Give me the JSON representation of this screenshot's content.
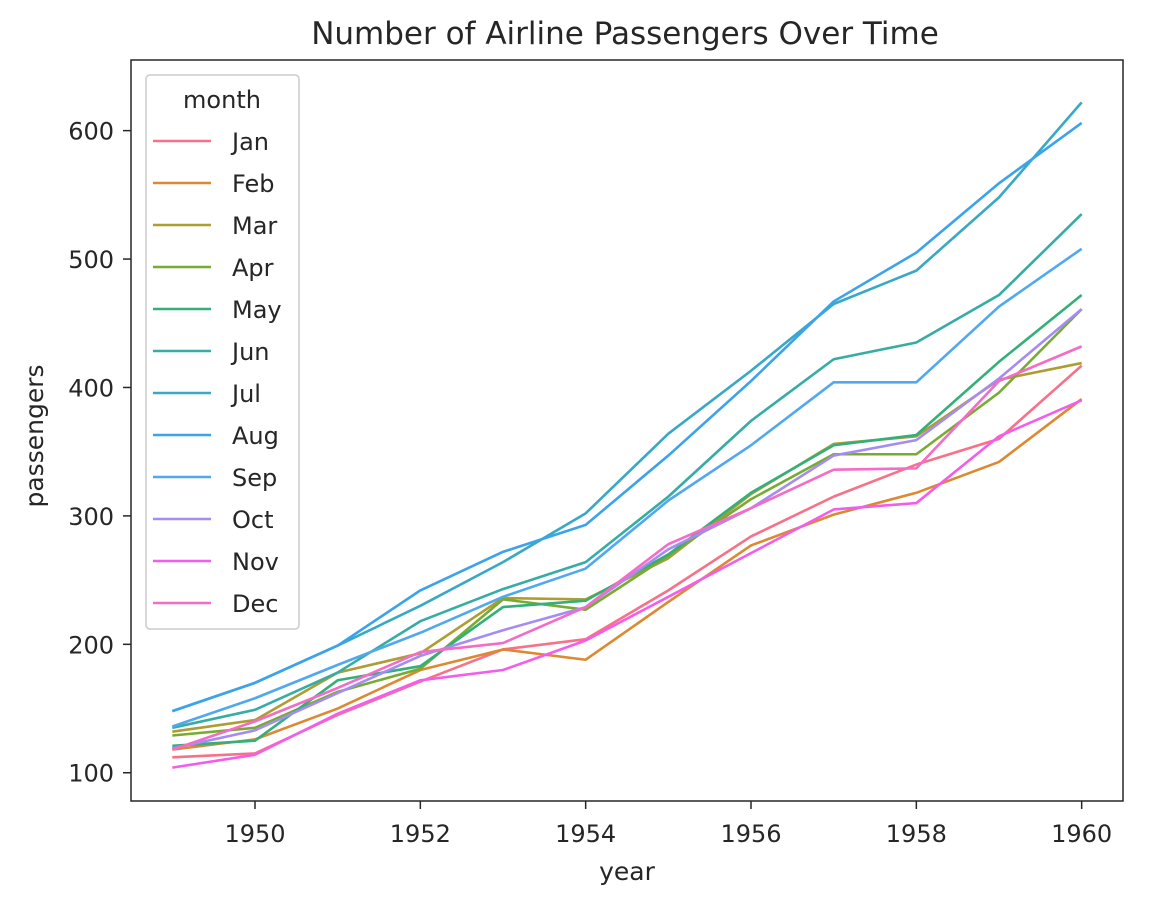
{
  "chart_data": {
    "type": "line",
    "title": "Number of Airline Passengers Over Time",
    "xlabel": "year",
    "ylabel": "passengers",
    "xlim": [
      1948.5,
      1960.5
    ],
    "ylim": [
      78,
      655
    ],
    "x_ticks": [
      1950,
      1952,
      1954,
      1956,
      1958,
      1960
    ],
    "x_tick_labels": [
      "1950",
      "1952",
      "1954",
      "1956",
      "1958",
      "1960"
    ],
    "y_ticks": [
      100,
      200,
      300,
      400,
      500,
      600
    ],
    "y_tick_labels": [
      "100",
      "200",
      "300",
      "400",
      "500",
      "600"
    ],
    "grid": false,
    "legend": {
      "title": "month",
      "placement": "top-left"
    },
    "x": [
      1949,
      1950,
      1951,
      1952,
      1953,
      1954,
      1955,
      1956,
      1957,
      1958,
      1959,
      1960
    ],
    "series": [
      {
        "name": "Jan",
        "color": "#f77189",
        "values": [
          112,
          115,
          145,
          171,
          196,
          204,
          242,
          284,
          315,
          340,
          360,
          417
        ]
      },
      {
        "name": "Feb",
        "color": "#dc8932",
        "values": [
          118,
          126,
          150,
          180,
          196,
          188,
          233,
          277,
          301,
          318,
          342,
          391
        ]
      },
      {
        "name": "Mar",
        "color": "#ae9d31",
        "values": [
          132,
          141,
          178,
          193,
          236,
          235,
          267,
          317,
          356,
          362,
          406,
          419
        ]
      },
      {
        "name": "Apr",
        "color": "#77ab31",
        "values": [
          129,
          135,
          163,
          181,
          235,
          227,
          269,
          313,
          348,
          348,
          396,
          461
        ]
      },
      {
        "name": "May",
        "color": "#33b07a",
        "values": [
          121,
          125,
          172,
          183,
          229,
          234,
          270,
          318,
          355,
          363,
          420,
          472
        ]
      },
      {
        "name": "Jun",
        "color": "#36ada4",
        "values": [
          135,
          149,
          178,
          218,
          243,
          264,
          315,
          374,
          422,
          435,
          472,
          535
        ]
      },
      {
        "name": "Jul",
        "color": "#38a9c5",
        "values": [
          148,
          170,
          199,
          230,
          264,
          302,
          364,
          413,
          465,
          491,
          548,
          622
        ]
      },
      {
        "name": "Aug",
        "color": "#3ba3ec",
        "values": [
          148,
          170,
          199,
          242,
          272,
          293,
          347,
          405,
          467,
          505,
          559,
          606
        ]
      },
      {
        "name": "Sep",
        "color": "#50a8f0",
        "values": [
          136,
          158,
          184,
          209,
          237,
          259,
          312,
          355,
          404,
          404,
          463,
          508
        ]
      },
      {
        "name": "Oct",
        "color": "#a48cf4",
        "values": [
          119,
          133,
          162,
          191,
          211,
          229,
          274,
          306,
          347,
          359,
          407,
          461
        ]
      },
      {
        "name": "Nov",
        "color": "#f45deb",
        "values": [
          104,
          114,
          146,
          172,
          180,
          203,
          237,
          271,
          305,
          310,
          362,
          390
        ]
      },
      {
        "name": "Dec",
        "color": "#f66bc5",
        "values": [
          118,
          140,
          166,
          194,
          201,
          229,
          278,
          306,
          336,
          337,
          405,
          432
        ]
      }
    ]
  }
}
